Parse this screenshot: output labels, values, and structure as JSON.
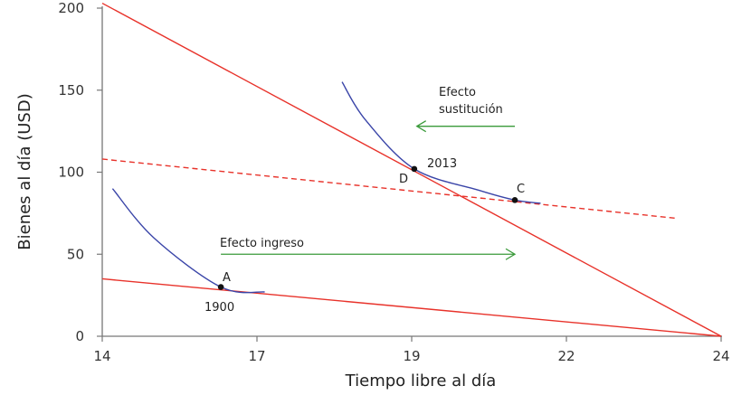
{
  "chart_data": {
    "type": "line",
    "xlabel": "Tiempo libre al día",
    "ylabel": "Bienes al día (USD)",
    "x_ticks": [
      14,
      17,
      19,
      22,
      24
    ],
    "y_ticks": [
      0,
      50,
      100,
      150,
      200
    ],
    "ylim": [
      0,
      200
    ],
    "grid": false,
    "colors": {
      "budget": "#e8322a",
      "indifference": "#3a45a8",
      "arrow": "#3a9a3a",
      "axis": "#777777",
      "point": "#111111"
    },
    "budget_lines": [
      {
        "style": "solid",
        "points": [
          [
            14,
            203
          ],
          [
            24,
            0
          ]
        ]
      },
      {
        "style": "solid",
        "points": [
          [
            14,
            35
          ],
          [
            24,
            0
          ]
        ]
      },
      {
        "style": "dashed",
        "points": [
          [
            14,
            108
          ],
          [
            23.4,
            72
          ]
        ]
      }
    ],
    "indifference_curves": [
      {
        "points": [
          [
            14.2,
            90
          ],
          [
            15.0,
            60
          ],
          [
            16.3,
            30
          ],
          [
            17.1,
            27
          ]
        ]
      },
      {
        "points": [
          [
            18.1,
            155
          ],
          [
            18.4,
            132
          ],
          [
            19.05,
            102
          ],
          [
            20.3,
            89
          ],
          [
            21.0,
            83
          ],
          [
            21.5,
            81
          ]
        ]
      }
    ],
    "points": [
      {
        "label": "A",
        "year": "1900",
        "x": 16.3,
        "y": 30
      },
      {
        "label": "D",
        "year": "2013",
        "x": 19.05,
        "y": 102
      },
      {
        "label": "C",
        "year": "",
        "x": 21.0,
        "y": 83
      }
    ],
    "annotations": [
      {
        "text": "Efecto ingreso",
        "arrow": "right",
        "from_x": 16.3,
        "to_x": 21.0,
        "y": 50
      },
      {
        "text_lines": [
          "Efecto",
          "sustitución"
        ],
        "arrow": "left",
        "from_x": 21.0,
        "to_x": 19.1,
        "y": 128
      }
    ]
  }
}
